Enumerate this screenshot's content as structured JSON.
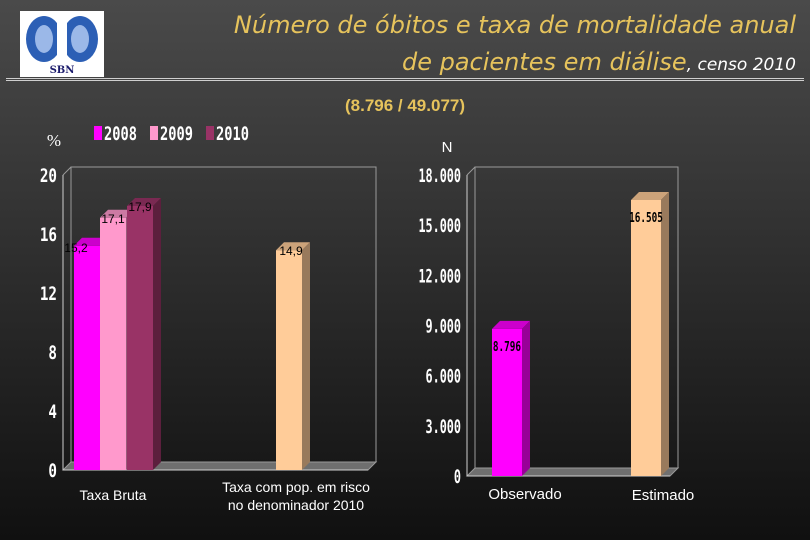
{
  "logo": {
    "text": "SBN",
    "colors": [
      "#2c5fb5",
      "#9bb8e8",
      "#ffffff"
    ]
  },
  "title": {
    "line1": "Número de óbitos e taxa de mortalidade anual",
    "line2": "de pacientes em diálise",
    "suffix": ", censo 2010"
  },
  "subtitle": "(8.796 / 49.077)",
  "colors": {
    "title": "#e6c35c",
    "axis_text": "#ffffff",
    "value_label": "#000000"
  },
  "chart_data": [
    {
      "type": "bar",
      "ylabel": "%",
      "ylim": [
        0,
        20
      ],
      "yticks": [
        "0",
        "4",
        "8",
        "12",
        "16",
        "20"
      ],
      "categories": [
        "Taxa Bruta",
        "Taxa com pop. em risco no denominador 2010"
      ],
      "series": [
        {
          "name": "2008",
          "color": "#ff00ff",
          "values": [
            15.2,
            null
          ],
          "labels": [
            "15,2",
            null
          ]
        },
        {
          "name": "2009",
          "color": "#ff99cc",
          "values": [
            17.1,
            null
          ],
          "labels": [
            "17,1",
            null
          ]
        },
        {
          "name": "2010",
          "color": "#993366",
          "values": [
            17.9,
            null
          ],
          "labels": [
            "17,9",
            null
          ]
        },
        {
          "name": "",
          "color": "#ffcc99",
          "values": [
            null,
            14.9
          ],
          "labels": [
            null,
            "14,9"
          ]
        }
      ],
      "legend": "top"
    },
    {
      "type": "bar",
      "ylabel": "N",
      "ylim": [
        0,
        18000
      ],
      "yticks": [
        "0",
        "3.000",
        "6.000",
        "9.000",
        "12.000",
        "15.000",
        "18.000"
      ],
      "categories": [
        "Observado",
        "Estimado"
      ],
      "values": [
        8796,
        16505
      ],
      "labels": [
        "8.796",
        "16.505"
      ],
      "colors": [
        "#ff00ff",
        "#ffcc99"
      ]
    }
  ]
}
